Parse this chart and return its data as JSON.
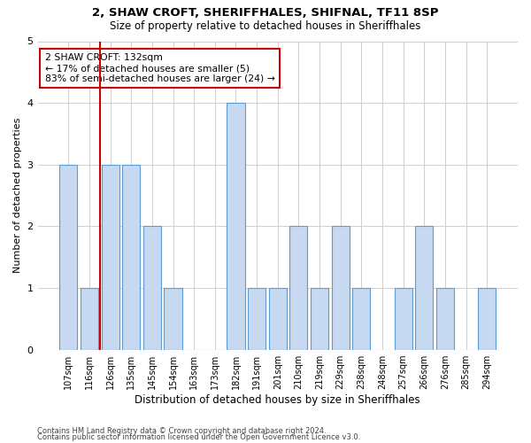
{
  "title1": "2, SHAW CROFT, SHERIFFHALES, SHIFNAL, TF11 8SP",
  "title2": "Size of property relative to detached houses in Sheriffhales",
  "xlabel": "Distribution of detached houses by size in Sheriffhales",
  "ylabel": "Number of detached properties",
  "annotation_line1": "2 SHAW CROFT: 132sqm",
  "annotation_line2": "← 17% of detached houses are smaller (5)",
  "annotation_line3": "83% of semi-detached houses are larger (24) →",
  "categories": [
    "107sqm",
    "116sqm",
    "126sqm",
    "135sqm",
    "145sqm",
    "154sqm",
    "163sqm",
    "173sqm",
    "182sqm",
    "191sqm",
    "201sqm",
    "210sqm",
    "219sqm",
    "229sqm",
    "238sqm",
    "248sqm",
    "257sqm",
    "266sqm",
    "276sqm",
    "285sqm",
    "294sqm"
  ],
  "values": [
    3,
    1,
    3,
    3,
    2,
    1,
    0,
    0,
    4,
    1,
    1,
    2,
    1,
    2,
    1,
    0,
    1,
    2,
    1,
    0,
    1
  ],
  "bar_color": "#c6d9f0",
  "bar_edge_color": "#5b9bd5",
  "reference_line_x": 1.5,
  "reference_line_color": "#cc0000",
  "ylim": [
    0,
    5
  ],
  "yticks": [
    0,
    1,
    2,
    3,
    4,
    5
  ],
  "grid_color": "#c8c8c8",
  "bg_color": "#ffffff",
  "annotation_box_color": "#ffffff",
  "annotation_box_edge": "#cc0000",
  "footer1": "Contains HM Land Registry data © Crown copyright and database right 2024.",
  "footer2": "Contains public sector information licensed under the Open Government Licence v3.0."
}
